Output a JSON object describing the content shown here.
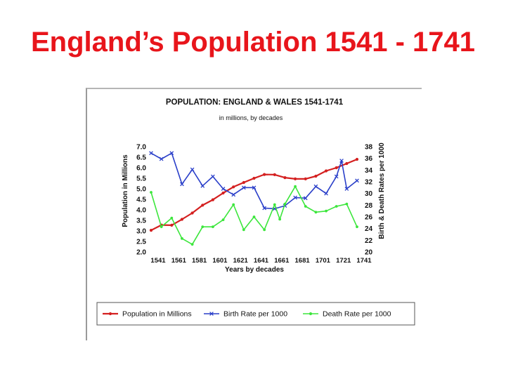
{
  "slide": {
    "title": "England’s Population 1541 - 1741"
  },
  "chart_data": {
    "type": "line",
    "title": "POPULATION: ENGLAND & WALES 1541-1741",
    "subtitle": "in millions, by  decades",
    "xlabel": "Years by decades",
    "ylabel_left": "Population in Millions",
    "ylabel_right": "Birth  & Death Rates per 1000",
    "x_ticks": [
      "1541",
      "1561",
      "1581",
      "1601",
      "1621",
      "1641",
      "1661",
      "1681",
      "1701",
      "1721",
      "1741"
    ],
    "ylim_left": [
      2.0,
      7.0
    ],
    "yticks_left": [
      "7.0",
      "6.5",
      "6.0",
      "5.5",
      "5.0",
      "4.5",
      "4.0",
      "3.5",
      "3.0",
      "2.5",
      "2.0"
    ],
    "ylim_right": [
      20,
      38
    ],
    "yticks_right": [
      "38",
      "36",
      "34",
      "32",
      "30",
      "28",
      "26",
      "24",
      "22",
      "20"
    ],
    "grid": false,
    "legend_position": "bottom",
    "x": [
      1541,
      1546,
      1551,
      1556,
      1561,
      1566,
      1571,
      1576,
      1581,
      1586,
      1591,
      1596,
      1601,
      1606,
      1611,
      1616,
      1621,
      1626,
      1631,
      1636,
      1641,
      1646,
      1651,
      1656,
      1661,
      1666,
      1671,
      1676,
      1681,
      1686,
      1691,
      1696,
      1701,
      1706,
      1711,
      1716,
      1721,
      1726,
      1731,
      1736,
      1741
    ],
    "series": [
      {
        "name": "Population in Millions",
        "color": "#d42020",
        "marker": "dot",
        "axis": "left",
        "x": [
          1541,
          1551,
          1561,
          1571,
          1581,
          1591,
          1601,
          1611,
          1621,
          1631,
          1641,
          1651,
          1661,
          1671,
          1681,
          1691,
          1701,
          1711,
          1721,
          1731,
          1741
        ],
        "values": [
          3.03,
          3.28,
          3.27,
          3.55,
          3.85,
          4.22,
          4.48,
          4.8,
          5.09,
          5.3,
          5.5,
          5.68,
          5.67,
          5.53,
          5.47,
          5.47,
          5.6,
          5.85,
          6.0,
          6.2,
          6.4
        ]
      },
      {
        "name": "Birth Rate per 1000",
        "color": "#2a3fc9",
        "marker": "x",
        "axis": "right",
        "x": [
          1541,
          1551,
          1561,
          1571,
          1581,
          1591,
          1601,
          1611,
          1621,
          1631,
          1641,
          1651,
          1661,
          1671,
          1681,
          1691,
          1701,
          1711,
          1721,
          1726,
          1731,
          1741
        ],
        "values": [
          36.9,
          35.9,
          36.9,
          31.6,
          34.1,
          31.3,
          32.9,
          30.8,
          29.8,
          31.0,
          31.0,
          27.5,
          27.4,
          27.9,
          29.3,
          29.2,
          31.2,
          30.0,
          32.9,
          35.6,
          30.8,
          32.2
        ]
      },
      {
        "name": "Death Rate per 1000",
        "color": "#3ce63c",
        "marker": "dot",
        "axis": "right",
        "x": [
          1541,
          1551,
          1561,
          1571,
          1581,
          1591,
          1601,
          1611,
          1621,
          1631,
          1641,
          1651,
          1661,
          1666,
          1671,
          1681,
          1691,
          1701,
          1711,
          1721,
          1731,
          1741
        ],
        "values": [
          30.2,
          24.3,
          25.8,
          22.3,
          21.3,
          24.3,
          24.3,
          25.5,
          28.1,
          23.8,
          26.0,
          23.8,
          28.1,
          25.6,
          28.2,
          31.2,
          27.8,
          26.8,
          27.0,
          27.8,
          28.2,
          24.3
        ]
      }
    ]
  }
}
